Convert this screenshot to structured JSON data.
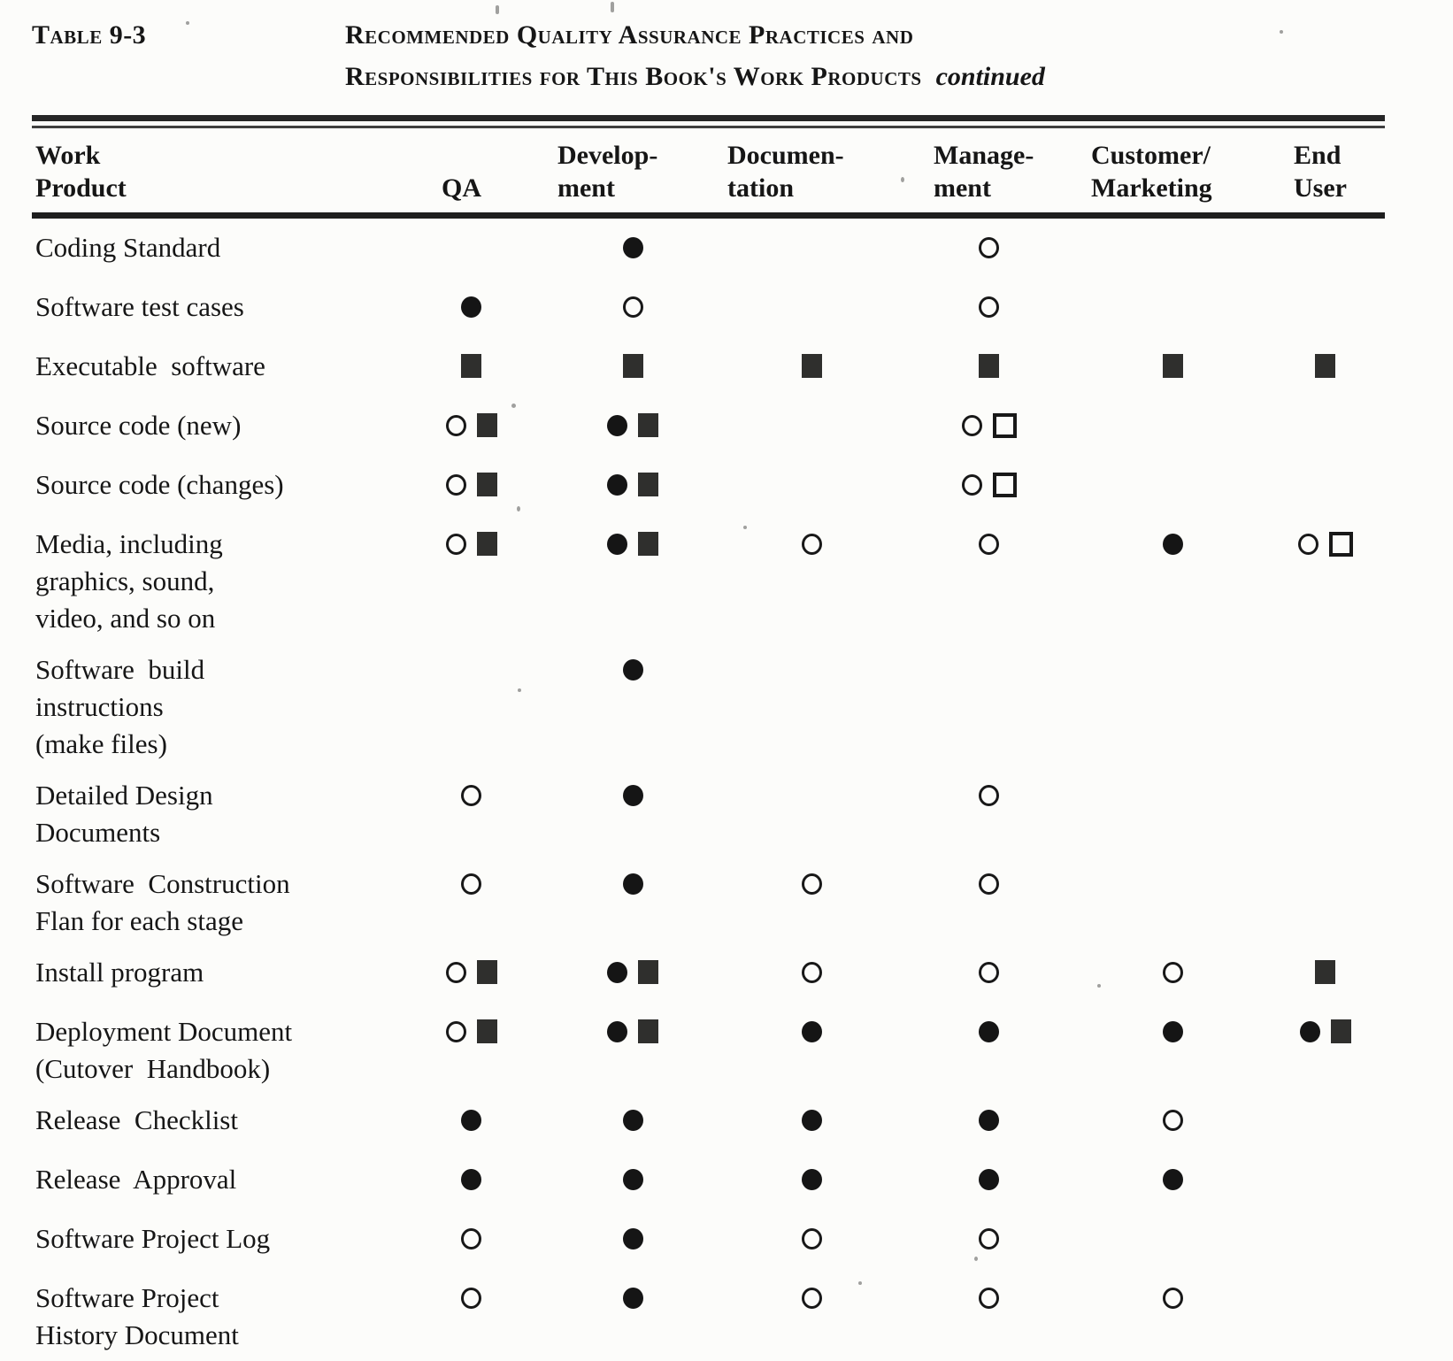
{
  "title": {
    "table_label": "Table 9-3",
    "line1": "Recommended Quality Assurance Practices and",
    "line2": "Responsibilities for This Book's Work Products",
    "continued_label": "continued"
  },
  "table": {
    "columns": [
      {
        "key": "work_product",
        "lines": [
          "Work",
          "Product"
        ]
      },
      {
        "key": "qa",
        "lines": [
          "QA"
        ]
      },
      {
        "key": "development",
        "lines": [
          "Develop-",
          "ment"
        ]
      },
      {
        "key": "documentation",
        "lines": [
          "Documen-",
          "tation"
        ]
      },
      {
        "key": "management",
        "lines": [
          "Manage-",
          "ment"
        ]
      },
      {
        "key": "customer_marketing",
        "lines": [
          "Customer/",
          "Marketing"
        ]
      },
      {
        "key": "end_user",
        "lines": [
          "End",
          "User"
        ]
      }
    ],
    "symbols": [
      "filled-circle",
      "open-circle",
      "filled-square",
      "open-square"
    ],
    "rows": [
      {
        "name_lines": [
          "Coding Standard"
        ],
        "cells": {
          "development": [
            "filled-circle"
          ],
          "management": [
            "open-circle"
          ]
        }
      },
      {
        "name_lines": [
          "Software test cases"
        ],
        "cells": {
          "qa": [
            "filled-circle"
          ],
          "development": [
            "open-circle"
          ],
          "management": [
            "open-circle"
          ]
        }
      },
      {
        "name_lines": [
          "Executable  software"
        ],
        "cells": {
          "qa": [
            "filled-square"
          ],
          "development": [
            "filled-square"
          ],
          "documentation": [
            "filled-square"
          ],
          "management": [
            "filled-square"
          ],
          "customer_marketing": [
            "filled-square"
          ],
          "end_user": [
            "filled-square"
          ]
        }
      },
      {
        "name_lines": [
          "Source code (new)"
        ],
        "cells": {
          "qa": [
            "open-circle",
            "filled-square"
          ],
          "development": [
            "filled-circle",
            "filled-square"
          ],
          "management": [
            "open-circle",
            "open-square"
          ]
        }
      },
      {
        "name_lines": [
          "Source code (changes)"
        ],
        "cells": {
          "qa": [
            "open-circle",
            "filled-square"
          ],
          "development": [
            "filled-circle",
            "filled-square"
          ],
          "management": [
            "open-circle",
            "open-square"
          ]
        }
      },
      {
        "name_lines": [
          "Media, including",
          "graphics, sound,",
          "video, and so on"
        ],
        "cells": {
          "qa": [
            "open-circle",
            "filled-square"
          ],
          "development": [
            "filled-circle",
            "filled-square"
          ],
          "documentation": [
            "open-circle"
          ],
          "management": [
            "open-circle"
          ],
          "customer_marketing": [
            "filled-circle"
          ],
          "end_user": [
            "open-circle",
            "open-square"
          ]
        }
      },
      {
        "name_lines": [
          "Software  build",
          "instructions",
          "(make files)"
        ],
        "cells": {
          "development": [
            "filled-circle"
          ]
        }
      },
      {
        "name_lines": [
          "Detailed Design",
          "Documents"
        ],
        "cells": {
          "qa": [
            "open-circle"
          ],
          "development": [
            "filled-circle"
          ],
          "management": [
            "open-circle"
          ]
        }
      },
      {
        "name_lines": [
          "Software  Construction",
          "Flan for each stage"
        ],
        "cells": {
          "qa": [
            "open-circle"
          ],
          "development": [
            "filled-circle"
          ],
          "documentation": [
            "open-circle"
          ],
          "management": [
            "open-circle"
          ]
        }
      },
      {
        "name_lines": [
          "Install program"
        ],
        "cells": {
          "qa": [
            "open-circle",
            "filled-square"
          ],
          "development": [
            "filled-circle",
            "filled-square"
          ],
          "documentation": [
            "open-circle"
          ],
          "management": [
            "open-circle"
          ],
          "customer_marketing": [
            "open-circle"
          ],
          "end_user": [
            "filled-square"
          ]
        }
      },
      {
        "name_lines": [
          "Deployment Document",
          "(Cutover  Handbook)"
        ],
        "cells": {
          "qa": [
            "open-circle",
            "filled-square"
          ],
          "development": [
            "filled-circle",
            "filled-square"
          ],
          "documentation": [
            "filled-circle"
          ],
          "management": [
            "filled-circle"
          ],
          "customer_marketing": [
            "filled-circle"
          ],
          "end_user": [
            "filled-circle",
            "filled-square"
          ]
        }
      },
      {
        "name_lines": [
          "Release  Checklist"
        ],
        "cells": {
          "qa": [
            "filled-circle"
          ],
          "development": [
            "filled-circle"
          ],
          "documentation": [
            "filled-circle"
          ],
          "management": [
            "filled-circle"
          ],
          "customer_marketing": [
            "open-circle"
          ]
        }
      },
      {
        "name_lines": [
          "Release  Approval"
        ],
        "cells": {
          "qa": [
            "filled-circle"
          ],
          "development": [
            "filled-circle"
          ],
          "documentation": [
            "filled-circle"
          ],
          "management": [
            "filled-circle"
          ],
          "customer_marketing": [
            "filled-circle"
          ]
        }
      },
      {
        "name_lines": [
          "Software Project Log"
        ],
        "cells": {
          "qa": [
            "open-circle"
          ],
          "development": [
            "filled-circle"
          ],
          "documentation": [
            "open-circle"
          ],
          "management": [
            "open-circle"
          ]
        }
      },
      {
        "name_lines": [
          "Software Project",
          "History Document"
        ],
        "cells": {
          "qa": [
            "open-circle"
          ],
          "development": [
            "filled-circle"
          ],
          "documentation": [
            "open-circle"
          ],
          "management": [
            "open-circle"
          ],
          "customer_marketing": [
            "open-circle"
          ]
        }
      }
    ]
  },
  "colors": {
    "ink": "#161616",
    "square_fill": "#2f2f2d",
    "page": "#fcfcfa"
  }
}
